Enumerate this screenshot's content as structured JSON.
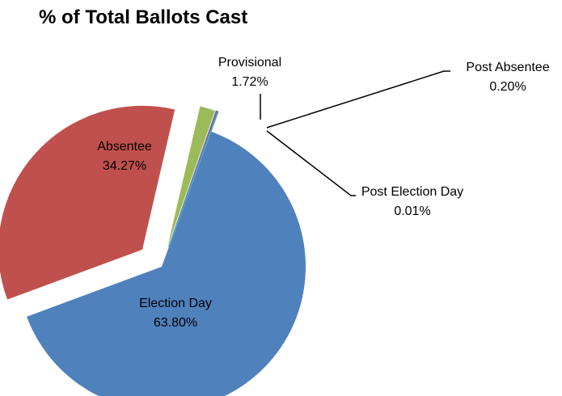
{
  "chart_data": {
    "type": "pie",
    "title": "% of Total Ballots Cast",
    "slices": [
      {
        "name": "Election Day",
        "value": 63.8,
        "label": "63.80%",
        "color": "#4f81bd"
      },
      {
        "name": "Absentee",
        "value": 34.27,
        "label": "34.27%",
        "color": "#c0504d"
      },
      {
        "name": "Provisional",
        "value": 1.72,
        "label": "1.72%",
        "color": "#9bbb59"
      },
      {
        "name": "Post Absentee",
        "value": 0.2,
        "label": "0.20%",
        "color": "#8064a2"
      },
      {
        "name": "Post Election Day",
        "value": 0.01,
        "label": "0.01%",
        "color": "#4bacc6"
      }
    ],
    "legend": "none",
    "data_labels": "category name and percentage"
  }
}
